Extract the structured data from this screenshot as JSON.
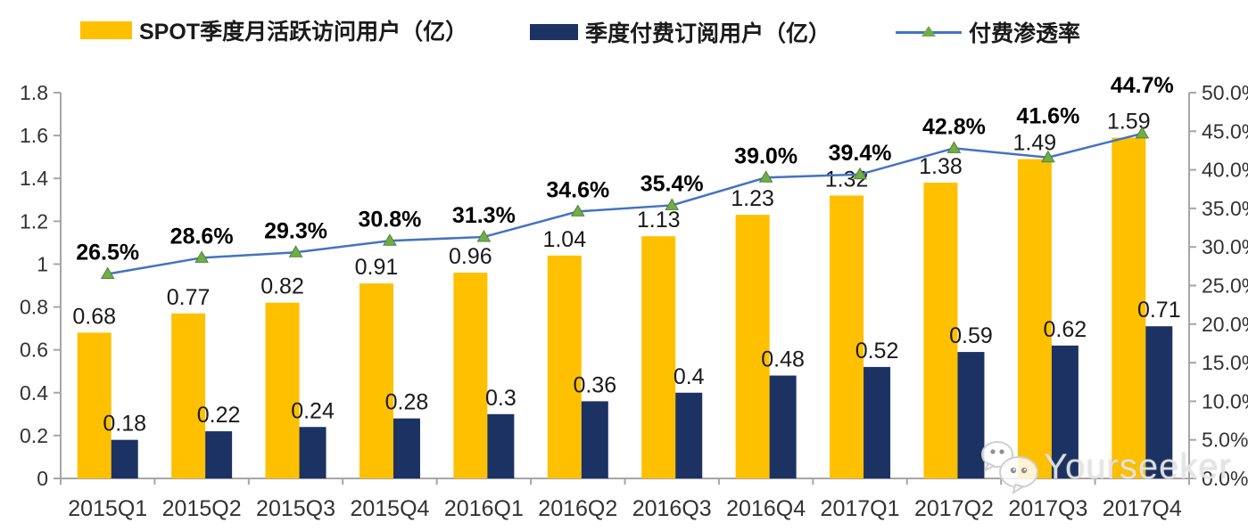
{
  "legend": {
    "items": [
      {
        "label": "SPOT季度月活跃访问用户（亿）",
        "swatch": "bar",
        "color": "#FFC000"
      },
      {
        "label": "季度付费订阅用户（亿）",
        "swatch": "bar",
        "color": "#1B3263"
      },
      {
        "label": "付费渗透率",
        "swatch": "line-triangle-marker",
        "line_color": "#4472C4",
        "marker_color": "#70AD47"
      }
    ]
  },
  "watermark": {
    "text": "Yourseeker",
    "icon": "wechat-chat-bubbles-icon"
  },
  "chart_data": {
    "type": "bar",
    "subtype": "grouped-bars-with-line-combo",
    "title": "",
    "grid": false,
    "legend_position": "top",
    "categories": [
      "2015Q1",
      "2015Q2",
      "2015Q3",
      "2015Q4",
      "2016Q1",
      "2016Q2",
      "2016Q3",
      "2016Q4",
      "2017Q1",
      "2017Q2",
      "2017Q3",
      "2017Q4"
    ],
    "series": [
      {
        "name": "SPOT季度月活跃访问用户（亿）",
        "type": "bar",
        "axis": "left",
        "color": "#FFC000",
        "values": [
          0.68,
          0.77,
          0.82,
          0.91,
          0.96,
          1.04,
          1.13,
          1.23,
          1.32,
          1.38,
          1.49,
          1.59
        ],
        "labels": [
          "0.68",
          "0.77",
          "0.82",
          "0.91",
          "0.96",
          "1.04",
          "1.13",
          "1.23",
          "1.32",
          "1.38",
          "1.49",
          "1.59"
        ]
      },
      {
        "name": "季度付费订阅用户（亿）",
        "type": "bar",
        "axis": "left",
        "color": "#1B3263",
        "values": [
          0.18,
          0.22,
          0.24,
          0.28,
          0.3,
          0.36,
          0.4,
          0.48,
          0.52,
          0.59,
          0.62,
          0.71
        ],
        "labels": [
          "0.18",
          "0.22",
          "0.24",
          "0.28",
          "0.3",
          "0.36",
          "0.4",
          "0.48",
          "0.52",
          "0.59",
          "0.62",
          "0.71"
        ]
      },
      {
        "name": "付费渗透率",
        "type": "line",
        "axis": "right",
        "color": "#4472C4",
        "marker": "triangle",
        "marker_color": "#70AD47",
        "marker_edge": "#548235",
        "values": [
          26.5,
          28.6,
          29.3,
          30.8,
          31.3,
          34.6,
          35.4,
          39.0,
          39.4,
          42.8,
          41.6,
          44.7
        ],
        "labels": [
          "26.5%",
          "28.6%",
          "29.3%",
          "30.8%",
          "31.3%",
          "34.6%",
          "35.4%",
          "39.0%",
          "39.4%",
          "42.8%",
          "41.6%",
          "44.7%"
        ]
      }
    ],
    "left_axis": {
      "range": [
        0,
        1.8
      ],
      "tick_step": 0.2,
      "tick_labels": [
        "0",
        "0.2",
        "0.4",
        "0.6",
        "0.8",
        "1",
        "1.2",
        "1.4",
        "1.6",
        "1.8"
      ]
    },
    "right_axis": {
      "range": [
        0,
        50
      ],
      "tick_step": 5,
      "tick_labels": [
        "0.0%",
        "5.0%",
        "10.0%",
        "15.0%",
        "20.0%",
        "25.0%",
        "30.0%",
        "35.0%",
        "40.0%",
        "45.0%",
        "50.0%"
      ]
    },
    "axis_color": "#a6a6a6",
    "tick_text_color": "#333333",
    "label_text_color": "#1a1a1a"
  }
}
